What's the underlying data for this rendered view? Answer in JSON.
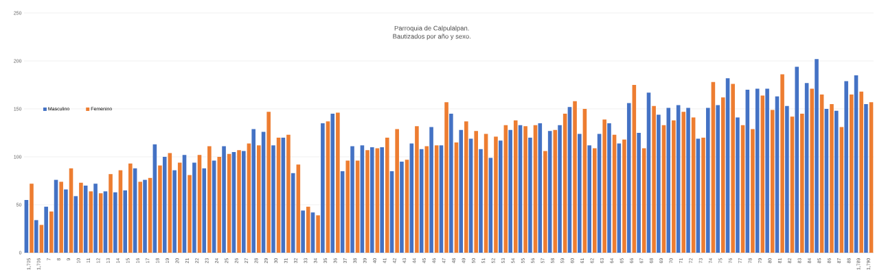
{
  "chart_data": {
    "type": "bar",
    "title": "Parroquia de Calpulalpan.",
    "subtitle": "Bautizados por año y sexo.",
    "categories": [
      "1,705",
      "1,706",
      "7",
      "8",
      "9",
      "10",
      "11",
      "12",
      "13",
      "14",
      "15",
      "16",
      "17",
      "18",
      "19",
      "20",
      "21",
      "22",
      "23",
      "24",
      "25",
      "26",
      "27",
      "28",
      "29",
      "30",
      "31",
      "32",
      "33",
      "34",
      "35",
      "36",
      "37",
      "38",
      "39",
      "40",
      "41",
      "42",
      "43",
      "44",
      "45",
      "46",
      "47",
      "48",
      "49",
      "50",
      "51",
      "52",
      "53",
      "54",
      "55",
      "56",
      "57",
      "58",
      "59",
      "60",
      "61",
      "62",
      "63",
      "64",
      "65",
      "66",
      "67",
      "68",
      "69",
      "70",
      "71",
      "72",
      "73",
      "74",
      "75",
      "76",
      "77",
      "78",
      "79",
      "80",
      "81",
      "82",
      "83",
      "84",
      "85",
      "86",
      "87",
      "88",
      "1,789",
      "1,790"
    ],
    "series": [
      {
        "name": "Masculino",
        "color": "#4472c4",
        "values": [
          55,
          34,
          48,
          76,
          66,
          59,
          70,
          72,
          64,
          63,
          65,
          88,
          76,
          113,
          100,
          86,
          102,
          94,
          88,
          96,
          111,
          105,
          106,
          129,
          126,
          112,
          120,
          83,
          44,
          42,
          135,
          145,
          85,
          111,
          112,
          110,
          110,
          85,
          95,
          114,
          108,
          131,
          112,
          145,
          128,
          119,
          108,
          99,
          117,
          128,
          133,
          120,
          135,
          127,
          133,
          152,
          124,
          112,
          124,
          135,
          114,
          156,
          125,
          167,
          144,
          151,
          154,
          151,
          119,
          151,
          154,
          182,
          141,
          170,
          171,
          171,
          163,
          153,
          194,
          177,
          202,
          150,
          148,
          179,
          185,
          155
        ]
      },
      {
        "name": "Femenino",
        "color": "#ed7d31",
        "values": [
          72,
          29,
          43,
          74,
          88,
          73,
          64,
          62,
          82,
          86,
          93,
          74,
          78,
          91,
          104,
          94,
          81,
          102,
          111,
          100,
          103,
          107,
          114,
          112,
          147,
          120,
          123,
          92,
          48,
          39,
          137,
          146,
          96,
          96,
          107,
          109,
          120,
          129,
          97,
          132,
          111,
          112,
          157,
          115,
          137,
          127,
          124,
          121,
          133,
          138,
          132,
          133,
          106,
          128,
          145,
          158,
          150,
          109,
          139,
          123,
          118,
          175,
          109,
          153,
          133,
          138,
          147,
          141,
          120,
          178,
          162,
          176,
          133,
          129,
          164,
          149,
          186,
          142,
          145,
          171,
          165,
          155,
          131,
          165,
          168,
          157
        ]
      }
    ],
    "ylim": [
      0,
      250
    ],
    "yticks": [
      0,
      50,
      100,
      150,
      200,
      250
    ],
    "grid": "y",
    "legend": "top left"
  }
}
